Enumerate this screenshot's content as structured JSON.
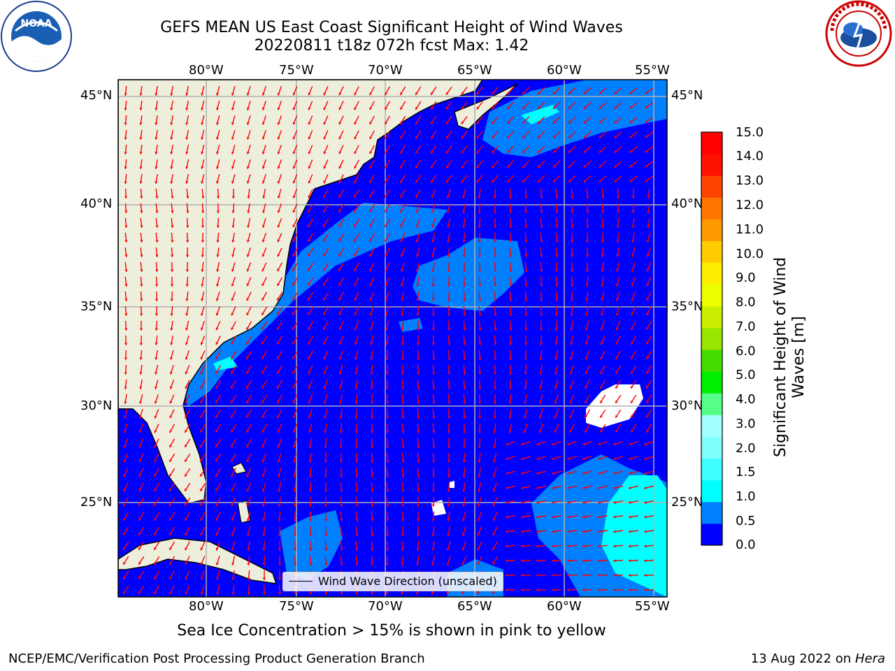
{
  "header": {
    "title_line1": "GEFS MEAN US East Coast Significant Height of Wind Waves",
    "title_line2": "20220811 t18z 072h fcst   Max: 1.42"
  },
  "logos": {
    "left": {
      "text": "NOAA",
      "icon": "noaa-seal-icon"
    },
    "right": {
      "text": "NATIONAL WEATHER SERVICE",
      "icon": "nws-seal-icon"
    }
  },
  "map": {
    "lon_labels": [
      "80°W",
      "75°W",
      "70°W",
      "65°W",
      "60°W",
      "55°W"
    ],
    "lat_labels": [
      "45°N",
      "40°N",
      "35°N",
      "30°N",
      "25°N"
    ],
    "colors": {
      "land": "#eeeedd",
      "ocean_low": "#0000ff",
      "ocean_mid": "#0080ff",
      "ocean_high": "#00ffff",
      "arrow": "#ff0000",
      "ice_free": "#ffffff"
    }
  },
  "legend": {
    "label": "Wind Wave Direction (unscaled)"
  },
  "colorbar": {
    "title": "Significant Height of Wind Waves [m]",
    "labels": [
      "0.0",
      "0.5",
      "1.0",
      "1.5",
      "2.0",
      "3.0",
      "4.0",
      "5.0",
      "6.0",
      "7.0",
      "8.0",
      "9.0",
      "10.0",
      "11.0",
      "12.0",
      "13.0",
      "14.0",
      "15.0"
    ],
    "colors": [
      "#0000ff",
      "#0080ff",
      "#00ffff",
      "#40ffff",
      "#80ffff",
      "#a0ffff",
      "#55ff88",
      "#00ee00",
      "#44dd00",
      "#99e600",
      "#ccee00",
      "#eeff00",
      "#ffee00",
      "#ffcc00",
      "#ff9900",
      "#ff7700",
      "#ff4400",
      "#ff1100",
      "#ff0000"
    ]
  },
  "caption": "Sea Ice Concentration > 15% is shown in pink to yellow",
  "footer": {
    "left": "NCEP/EMC/Verification Post Processing Product Generation Branch",
    "right_date": "13 Aug 2022 on",
    "right_host": "Hera"
  }
}
